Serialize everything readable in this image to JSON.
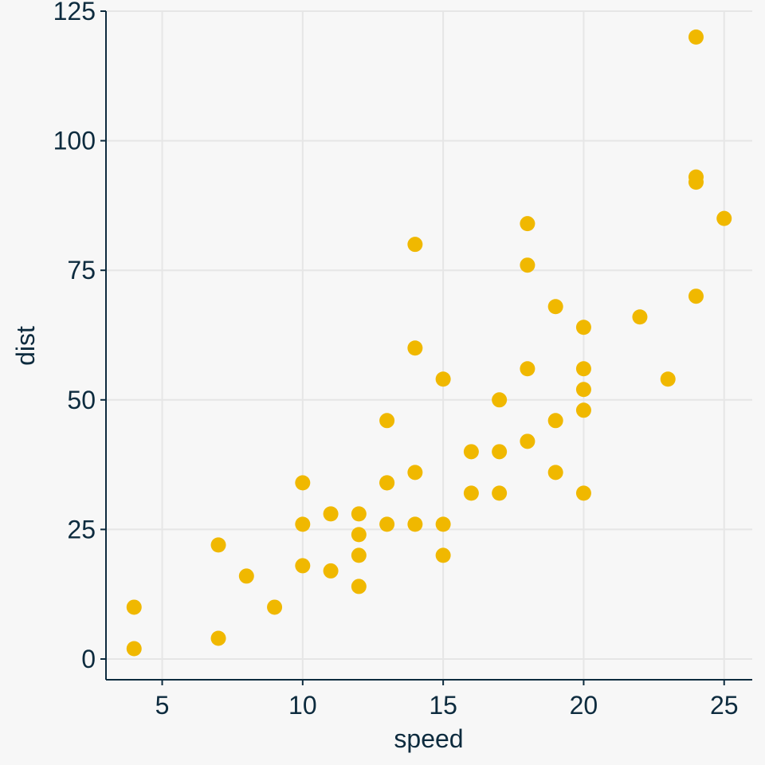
{
  "chart_data": {
    "type": "scatter",
    "title": "",
    "xlabel": "speed",
    "ylabel": "dist",
    "xlim": [
      3,
      26
    ],
    "ylim": [
      -4,
      125
    ],
    "x_ticks": [
      5,
      10,
      15,
      20,
      25
    ],
    "y_ticks": [
      0,
      25,
      50,
      75,
      100,
      125
    ],
    "grid": true,
    "legend": "none",
    "colors": {
      "points": "#F0B800",
      "axis": "#0d2b3e",
      "grid": "#e6e6e6",
      "background": "#f7f7f7"
    },
    "series": [
      {
        "points": [
          [
            4,
            2
          ],
          [
            4,
            10
          ],
          [
            7,
            4
          ],
          [
            7,
            22
          ],
          [
            8,
            16
          ],
          [
            9,
            10
          ],
          [
            10,
            18
          ],
          [
            10,
            26
          ],
          [
            10,
            34
          ],
          [
            11,
            17
          ],
          [
            11,
            28
          ],
          [
            12,
            14
          ],
          [
            12,
            20
          ],
          [
            12,
            24
          ],
          [
            12,
            28
          ],
          [
            13,
            26
          ],
          [
            13,
            34
          ],
          [
            13,
            34
          ],
          [
            13,
            46
          ],
          [
            14,
            26
          ],
          [
            14,
            36
          ],
          [
            14,
            60
          ],
          [
            14,
            80
          ],
          [
            15,
            20
          ],
          [
            15,
            26
          ],
          [
            15,
            54
          ],
          [
            16,
            32
          ],
          [
            16,
            40
          ],
          [
            17,
            32
          ],
          [
            17,
            40
          ],
          [
            17,
            50
          ],
          [
            18,
            42
          ],
          [
            18,
            56
          ],
          [
            18,
            76
          ],
          [
            18,
            84
          ],
          [
            19,
            36
          ],
          [
            19,
            46
          ],
          [
            19,
            68
          ],
          [
            20,
            32
          ],
          [
            20,
            48
          ],
          [
            20,
            52
          ],
          [
            20,
            56
          ],
          [
            20,
            64
          ],
          [
            22,
            66
          ],
          [
            23,
            54
          ],
          [
            24,
            70
          ],
          [
            24,
            92
          ],
          [
            24,
            93
          ],
          [
            24,
            120
          ],
          [
            25,
            85
          ]
        ]
      }
    ]
  }
}
